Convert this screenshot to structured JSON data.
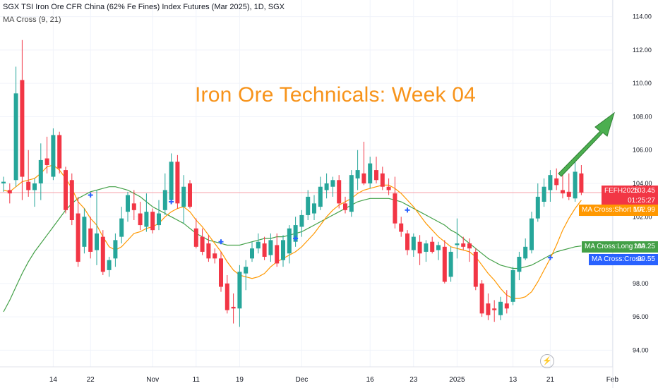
{
  "header": {
    "title": "SGX TSI Iron Ore CFR China (62% Fe Fines) Index Futures (Mar 2025), 1D, SGX",
    "indicator": "MA Cross (9, 21)"
  },
  "annotation": {
    "title": "Iron Ore Technicals: Week 04"
  },
  "colors": {
    "up": "#26a69a",
    "down": "#f23645",
    "short_ma": "#ff9800",
    "long_ma": "#43a047",
    "cross": "#2962ff",
    "arrow": "#4caf50",
    "title": "#f7931a"
  },
  "labels": {
    "symbol": "FEFH2025",
    "last_price": "103.45",
    "countdown": "01:25:27",
    "short_ma_name": "MA Cross:Short MA",
    "short_ma_value": "102.99",
    "long_ma_name": "MA Cross:Long MA",
    "long_ma_value": "100.25",
    "cross_name": "MA Cross:Cross",
    "cross_value": "99.55"
  },
  "chart_data": {
    "type": "candlestick",
    "ylim": [
      93,
      115
    ],
    "y_ticks": [
      "94.00",
      "96.00",
      "98.00",
      "100.00",
      "102.00",
      "104.00",
      "106.00",
      "108.00",
      "110.00",
      "112.00",
      "114.00"
    ],
    "x_ticks": [
      {
        "index": 8,
        "label": "14"
      },
      {
        "index": 14,
        "label": "22"
      },
      {
        "index": 24,
        "label": "Nov"
      },
      {
        "index": 31,
        "label": "11"
      },
      {
        "index": 38,
        "label": "19"
      },
      {
        "index": 48,
        "label": "Dec"
      },
      {
        "index": 59,
        "label": "16"
      },
      {
        "index": 66,
        "label": "23"
      },
      {
        "index": 73,
        "label": "2025"
      },
      {
        "index": 82,
        "label": "13"
      },
      {
        "index": 88,
        "label": "21"
      },
      {
        "index": 98,
        "label": "Feb"
      }
    ],
    "last_price": 103.45,
    "candles": [
      {
        "o": 104.0,
        "h": 104.4,
        "l": 103.5,
        "c": 104.1
      },
      {
        "o": 103.6,
        "h": 104.0,
        "l": 102.8,
        "c": 103.4
      },
      {
        "o": 104.2,
        "h": 111.0,
        "l": 103.8,
        "c": 109.4
      },
      {
        "o": 110.2,
        "h": 112.6,
        "l": 103.0,
        "c": 104.4
      },
      {
        "o": 104.1,
        "h": 106.0,
        "l": 103.2,
        "c": 103.6
      },
      {
        "o": 103.6,
        "h": 104.3,
        "l": 102.6,
        "c": 104.0
      },
      {
        "o": 104.0,
        "h": 106.4,
        "l": 103.0,
        "c": 105.4
      },
      {
        "o": 105.5,
        "h": 106.8,
        "l": 104.6,
        "c": 105.1
      },
      {
        "o": 104.4,
        "h": 107.3,
        "l": 104.2,
        "c": 106.9
      },
      {
        "o": 106.9,
        "h": 107.1,
        "l": 104.6,
        "c": 104.9
      },
      {
        "o": 104.8,
        "h": 105.0,
        "l": 102.2,
        "c": 102.4
      },
      {
        "o": 104.2,
        "h": 104.6,
        "l": 101.5,
        "c": 101.8
      },
      {
        "o": 102.2,
        "h": 103.2,
        "l": 99.0,
        "c": 99.3
      },
      {
        "o": 100.2,
        "h": 102.5,
        "l": 99.8,
        "c": 102.0
      },
      {
        "o": 101.3,
        "h": 102.0,
        "l": 99.5,
        "c": 99.9
      },
      {
        "o": 100.0,
        "h": 103.6,
        "l": 99.1,
        "c": 101.0
      },
      {
        "o": 100.8,
        "h": 101.2,
        "l": 98.5,
        "c": 98.7
      },
      {
        "o": 98.8,
        "h": 99.6,
        "l": 98.4,
        "c": 99.4
      },
      {
        "o": 99.5,
        "h": 101.0,
        "l": 99.0,
        "c": 100.6
      },
      {
        "o": 100.8,
        "h": 102.6,
        "l": 100.4,
        "c": 101.9
      },
      {
        "o": 102.3,
        "h": 103.5,
        "l": 101.7,
        "c": 103.3
      },
      {
        "o": 102.8,
        "h": 103.6,
        "l": 101.8,
        "c": 102.4
      },
      {
        "o": 102.2,
        "h": 102.9,
        "l": 101.2,
        "c": 101.5
      },
      {
        "o": 101.4,
        "h": 103.4,
        "l": 101.1,
        "c": 102.3
      },
      {
        "o": 102.3,
        "h": 102.5,
        "l": 101.0,
        "c": 101.2
      },
      {
        "o": 101.5,
        "h": 103.0,
        "l": 101.2,
        "c": 102.2
      },
      {
        "o": 102.4,
        "h": 104.6,
        "l": 102.1,
        "c": 103.6
      },
      {
        "o": 103.0,
        "h": 105.8,
        "l": 102.8,
        "c": 105.3
      },
      {
        "o": 105.3,
        "h": 105.7,
        "l": 102.5,
        "c": 102.8
      },
      {
        "o": 102.6,
        "h": 104.5,
        "l": 101.6,
        "c": 103.8
      },
      {
        "o": 104.0,
        "h": 104.2,
        "l": 102.5,
        "c": 102.6
      },
      {
        "o": 101.3,
        "h": 101.9,
        "l": 100.1,
        "c": 100.2
      },
      {
        "o": 100.8,
        "h": 101.3,
        "l": 99.7,
        "c": 99.9
      },
      {
        "o": 100.4,
        "h": 100.9,
        "l": 99.3,
        "c": 99.5
      },
      {
        "o": 99.8,
        "h": 100.1,
        "l": 99.2,
        "c": 99.5
      },
      {
        "o": 99.5,
        "h": 99.9,
        "l": 97.5,
        "c": 97.8
      },
      {
        "o": 98.0,
        "h": 98.5,
        "l": 96.2,
        "c": 96.4
      },
      {
        "o": 96.6,
        "h": 97.4,
        "l": 95.6,
        "c": 96.5
      },
      {
        "o": 96.5,
        "h": 99.1,
        "l": 95.4,
        "c": 98.7
      },
      {
        "o": 98.6,
        "h": 99.4,
        "l": 97.6,
        "c": 99.0
      },
      {
        "o": 99.5,
        "h": 100.5,
        "l": 99.3,
        "c": 100.1
      },
      {
        "o": 100.1,
        "h": 101.0,
        "l": 99.8,
        "c": 100.5
      },
      {
        "o": 100.4,
        "h": 100.8,
        "l": 99.4,
        "c": 99.6
      },
      {
        "o": 99.7,
        "h": 101.0,
        "l": 99.3,
        "c": 100.6
      },
      {
        "o": 100.3,
        "h": 101.0,
        "l": 99.0,
        "c": 99.2
      },
      {
        "o": 99.4,
        "h": 100.9,
        "l": 99.0,
        "c": 100.6
      },
      {
        "o": 99.8,
        "h": 101.5,
        "l": 99.2,
        "c": 101.3
      },
      {
        "o": 100.5,
        "h": 102.0,
        "l": 100.2,
        "c": 101.5
      },
      {
        "o": 101.4,
        "h": 102.4,
        "l": 100.8,
        "c": 102.1
      },
      {
        "o": 102.1,
        "h": 103.6,
        "l": 101.8,
        "c": 103.2
      },
      {
        "o": 102.2,
        "h": 103.3,
        "l": 101.8,
        "c": 102.8
      },
      {
        "o": 102.6,
        "h": 104.4,
        "l": 102.4,
        "c": 103.8
      },
      {
        "o": 103.6,
        "h": 104.6,
        "l": 103.1,
        "c": 104.0
      },
      {
        "o": 103.8,
        "h": 104.4,
        "l": 103.2,
        "c": 104.2
      },
      {
        "o": 104.2,
        "h": 104.5,
        "l": 102.5,
        "c": 102.8
      },
      {
        "o": 102.8,
        "h": 103.2,
        "l": 102.2,
        "c": 102.4
      },
      {
        "o": 102.3,
        "h": 104.8,
        "l": 102.0,
        "c": 104.5
      },
      {
        "o": 104.3,
        "h": 106.0,
        "l": 103.6,
        "c": 104.8
      },
      {
        "o": 104.6,
        "h": 106.5,
        "l": 103.9,
        "c": 104.0
      },
      {
        "o": 104.0,
        "h": 105.6,
        "l": 103.7,
        "c": 105.2
      },
      {
        "o": 104.8,
        "h": 105.6,
        "l": 104.0,
        "c": 104.2
      },
      {
        "o": 104.6,
        "h": 105.0,
        "l": 103.6,
        "c": 103.8
      },
      {
        "o": 103.8,
        "h": 104.3,
        "l": 103.3,
        "c": 103.6
      },
      {
        "o": 103.4,
        "h": 104.4,
        "l": 101.3,
        "c": 101.6
      },
      {
        "o": 101.6,
        "h": 102.0,
        "l": 100.8,
        "c": 101.1
      },
      {
        "o": 101.0,
        "h": 101.2,
        "l": 99.7,
        "c": 100.0
      },
      {
        "o": 100.0,
        "h": 101.0,
        "l": 99.6,
        "c": 100.8
      },
      {
        "o": 100.5,
        "h": 100.9,
        "l": 99.1,
        "c": 99.8
      },
      {
        "o": 99.9,
        "h": 100.6,
        "l": 99.3,
        "c": 100.4
      },
      {
        "o": 100.5,
        "h": 100.8,
        "l": 99.8,
        "c": 99.9
      },
      {
        "o": 100.0,
        "h": 100.5,
        "l": 99.4,
        "c": 100.3
      },
      {
        "o": 100.2,
        "h": 100.6,
        "l": 98.0,
        "c": 98.1
      },
      {
        "o": 98.4,
        "h": 100.2,
        "l": 98.1,
        "c": 99.9
      },
      {
        "o": 100.3,
        "h": 101.9,
        "l": 99.5,
        "c": 100.4
      },
      {
        "o": 100.4,
        "h": 100.8,
        "l": 100.0,
        "c": 100.2
      },
      {
        "o": 100.4,
        "h": 100.7,
        "l": 99.3,
        "c": 100.1
      },
      {
        "o": 99.9,
        "h": 100.1,
        "l": 97.6,
        "c": 97.8
      },
      {
        "o": 98.0,
        "h": 98.2,
        "l": 96.0,
        "c": 96.2
      },
      {
        "o": 96.8,
        "h": 97.4,
        "l": 95.8,
        "c": 96.1
      },
      {
        "o": 96.5,
        "h": 97.0,
        "l": 95.7,
        "c": 96.4
      },
      {
        "o": 96.1,
        "h": 97.2,
        "l": 95.8,
        "c": 96.9
      },
      {
        "o": 96.8,
        "h": 97.6,
        "l": 96.2,
        "c": 96.5
      },
      {
        "o": 96.9,
        "h": 99.0,
        "l": 96.7,
        "c": 98.8
      },
      {
        "o": 98.7,
        "h": 99.9,
        "l": 98.2,
        "c": 99.6
      },
      {
        "o": 99.5,
        "h": 100.7,
        "l": 99.4,
        "c": 100.2
      },
      {
        "o": 100.0,
        "h": 102.3,
        "l": 99.8,
        "c": 101.9
      },
      {
        "o": 101.9,
        "h": 104.0,
        "l": 101.7,
        "c": 103.2
      },
      {
        "o": 102.9,
        "h": 104.3,
        "l": 102.6,
        "c": 103.8
      },
      {
        "o": 103.6,
        "h": 104.8,
        "l": 102.9,
        "c": 104.5
      },
      {
        "o": 104.3,
        "h": 104.9,
        "l": 103.6,
        "c": 103.9
      },
      {
        "o": 103.6,
        "h": 104.6,
        "l": 103.1,
        "c": 103.4
      },
      {
        "o": 103.5,
        "h": 104.6,
        "l": 103.0,
        "c": 103.2
      },
      {
        "o": 103.1,
        "h": 105.3,
        "l": 102.9,
        "c": 104.7
      },
      {
        "o": 104.6,
        "h": 105.1,
        "l": 103.3,
        "c": 103.45
      }
    ],
    "short_ma": [
      103.6,
      103.5,
      103.8,
      104.1,
      104.2,
      104.3,
      104.6,
      105.0,
      105.1,
      104.8,
      104.3,
      103.7,
      102.9,
      102.5,
      101.9,
      101.5,
      100.8,
      100.2,
      100.0,
      100.2,
      100.6,
      101.0,
      101.1,
      101.3,
      101.4,
      101.6,
      102.0,
      102.3,
      102.5,
      102.6,
      102.3,
      101.8,
      101.4,
      100.9,
      100.4,
      99.9,
      99.3,
      98.8,
      98.5,
      98.4,
      98.3,
      98.4,
      98.6,
      99.0,
      99.3,
      99.5,
      99.7,
      99.9,
      100.2,
      100.6,
      101.0,
      101.5,
      102.0,
      102.4,
      102.7,
      102.9,
      103.1,
      103.4,
      103.6,
      103.7,
      103.8,
      103.9,
      103.9,
      103.7,
      103.4,
      103.0,
      102.6,
      102.1,
      101.6,
      101.2,
      100.8,
      100.5,
      100.2,
      100.1,
      100.0,
      99.9,
      99.6,
      99.1,
      98.6,
      98.2,
      97.7,
      97.3,
      97.1,
      97.1,
      97.2,
      97.5,
      98.1,
      98.8,
      99.5,
      100.3,
      101.2,
      101.9,
      102.5,
      102.99
    ],
    "long_ma": [
      96.3,
      97.0,
      97.8,
      98.6,
      99.3,
      99.9,
      100.4,
      100.9,
      101.4,
      101.9,
      102.4,
      102.8,
      103.1,
      103.3,
      103.5,
      103.6,
      103.7,
      103.8,
      103.8,
      103.7,
      103.6,
      103.4,
      103.2,
      102.9,
      102.6,
      102.4,
      102.2,
      102.0,
      101.8,
      101.6,
      101.3,
      101.0,
      100.8,
      100.6,
      100.5,
      100.4,
      100.3,
      100.3,
      100.3,
      100.4,
      100.5,
      100.6,
      100.7,
      100.7,
      100.8,
      100.8,
      100.9,
      101.0,
      101.1,
      101.3,
      101.5,
      101.7,
      101.9,
      102.1,
      102.3,
      102.5,
      102.7,
      102.9,
      103.0,
      103.1,
      103.1,
      103.1,
      103.1,
      103.0,
      102.9,
      102.7,
      102.5,
      102.3,
      102.1,
      101.9,
      101.7,
      101.5,
      101.2,
      101.0,
      100.7,
      100.4,
      100.1,
      99.8,
      99.5,
      99.3,
      99.1,
      99.0,
      98.9,
      98.9,
      99.0,
      99.1,
      99.3,
      99.5,
      99.7,
      99.9,
      100.0,
      100.1,
      100.2,
      100.25
    ],
    "cross_points": [
      {
        "index": 14,
        "value": 103.3
      },
      {
        "index": 27,
        "value": 102.9
      },
      {
        "index": 35,
        "value": 100.5
      },
      {
        "index": 47,
        "value": 100.7
      },
      {
        "index": 65,
        "value": 102.4
      },
      {
        "index": 88,
        "value": 99.55
      }
    ]
  }
}
